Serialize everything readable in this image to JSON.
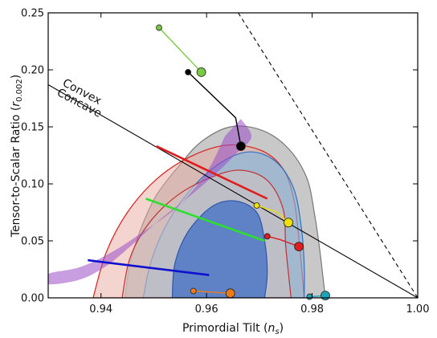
{
  "chart_data": {
    "type": "scatter",
    "xlabel_main": "Primordial Tilt (",
    "xlabel_var": "n",
    "xlabel_sub": "s",
    "xlabel_end": ")",
    "ylabel_main": "Tensor-to-Scalar Ratio (",
    "ylabel_var": "r",
    "ylabel_sub": "0.002",
    "ylabel_end": ")",
    "xlim": [
      0.93,
      1.0
    ],
    "ylim": [
      0.0,
      0.25
    ],
    "xticks": [
      0.94,
      0.96,
      0.98,
      1.0
    ],
    "xtick_labels": [
      "0.94",
      "0.96",
      "0.98",
      "1.00"
    ],
    "yticks": [
      0.0,
      0.05,
      0.1,
      0.15,
      0.2,
      0.25
    ],
    "ytick_labels": [
      "0.00",
      "0.05",
      "0.10",
      "0.15",
      "0.20",
      "0.25"
    ],
    "grid": false,
    "annotations": {
      "convex": "Convex",
      "concave": "Concave"
    },
    "boundary_line": {
      "x": [
        0.93,
        1.0
      ],
      "y": [
        0.187,
        0.0
      ]
    },
    "dashed_line": {
      "x": [
        0.966,
        1.0
      ],
      "y": [
        0.25,
        0.0
      ]
    },
    "contours": [
      {
        "color": "#b0b0b0",
        "opacity": 0.7,
        "stroke": "#777777",
        "points": [
          [
            0.9445,
            0.0
          ],
          [
            0.9455,
            0.03
          ],
          [
            0.9475,
            0.06
          ],
          [
            0.9505,
            0.09
          ],
          [
            0.955,
            0.117
          ],
          [
            0.959,
            0.137
          ],
          [
            0.9645,
            0.15
          ],
          [
            0.9705,
            0.147
          ],
          [
            0.9755,
            0.131
          ],
          [
            0.979,
            0.105
          ],
          [
            0.9805,
            0.072
          ],
          [
            0.9815,
            0.04
          ],
          [
            0.9825,
            0.0
          ]
        ]
      },
      {
        "color": "#e8a99e",
        "opacity": 0.5,
        "stroke": "#d62020",
        "points": [
          [
            0.9385,
            0.0
          ],
          [
            0.941,
            0.04
          ],
          [
            0.945,
            0.075
          ],
          [
            0.9505,
            0.104
          ],
          [
            0.957,
            0.124
          ],
          [
            0.964,
            0.134
          ],
          [
            0.9705,
            0.129
          ],
          [
            0.9745,
            0.113
          ],
          [
            0.9765,
            0.087
          ],
          [
            0.9775,
            0.052
          ],
          [
            0.9785,
            0.0
          ]
        ]
      },
      {
        "color": "#7fb8e0",
        "opacity": 0.6,
        "stroke": "#2f6fc4",
        "points": [
          [
            0.948,
            0.0
          ],
          [
            0.9495,
            0.032
          ],
          [
            0.9525,
            0.065
          ],
          [
            0.957,
            0.095
          ],
          [
            0.9625,
            0.118
          ],
          [
            0.968,
            0.128
          ],
          [
            0.973,
            0.12
          ],
          [
            0.9765,
            0.096
          ],
          [
            0.978,
            0.06
          ],
          [
            0.9785,
            0.028
          ],
          [
            0.9785,
            0.0
          ]
        ]
      },
      {
        "color": "#d0c2c2",
        "opacity": 0.6,
        "stroke": "#c03030",
        "points": [
          [
            0.944,
            0.0
          ],
          [
            0.9455,
            0.035
          ],
          [
            0.949,
            0.065
          ],
          [
            0.9545,
            0.09
          ],
          [
            0.961,
            0.106
          ],
          [
            0.9665,
            0.112
          ],
          [
            0.9715,
            0.103
          ],
          [
            0.9745,
            0.078
          ],
          [
            0.975,
            0.045
          ],
          [
            0.976,
            0.0
          ]
        ]
      },
      {
        "color": "#4f77c6",
        "opacity": 0.85,
        "stroke": "#2f55a8",
        "points": [
          [
            0.9535,
            0.0
          ],
          [
            0.954,
            0.03
          ],
          [
            0.9565,
            0.058
          ],
          [
            0.961,
            0.08
          ],
          [
            0.9655,
            0.085
          ],
          [
            0.9695,
            0.075
          ],
          [
            0.971,
            0.05
          ],
          [
            0.9715,
            0.022
          ],
          [
            0.971,
            0.0
          ]
        ]
      }
    ],
    "purple_band": {
      "color": "#9b4fc9",
      "points": [
        [
          0.9665,
          0.157
        ],
        [
          0.9685,
          0.141
        ],
        [
          0.9655,
          0.126
        ],
        [
          0.962,
          0.11
        ],
        [
          0.957,
          0.09
        ],
        [
          0.951,
          0.068
        ],
        [
          0.9455,
          0.045
        ],
        [
          0.941,
          0.028
        ],
        [
          0.936,
          0.016
        ],
        [
          0.93,
          0.012
        ],
        [
          0.93,
          0.021
        ],
        [
          0.936,
          0.027
        ],
        [
          0.942,
          0.04
        ],
        [
          0.948,
          0.058
        ],
        [
          0.9545,
          0.08
        ],
        [
          0.96,
          0.11
        ],
        [
          0.9635,
          0.142
        ]
      ]
    },
    "series": [
      {
        "color": "#7ac943",
        "marker": true,
        "x": [
          0.951,
          0.959
        ],
        "y": [
          0.237,
          0.198
        ]
      },
      {
        "color": "#000000",
        "marker": true,
        "x": [
          0.9565,
          0.9655,
          0.9665
        ],
        "y": [
          0.198,
          0.158,
          0.133
        ]
      },
      {
        "color": "#e01c1c",
        "marker": false,
        "x": [
          0.9505,
          0.9715
        ],
        "y": [
          0.133,
          0.087
        ]
      },
      {
        "color": "#f0e000",
        "marker": true,
        "x": [
          0.9695,
          0.9735,
          0.9755
        ],
        "y": [
          0.081,
          0.075,
          0.066
        ]
      },
      {
        "color": "#e01c1c",
        "marker": true,
        "x": [
          0.9715,
          0.974,
          0.9775
        ],
        "y": [
          0.054,
          0.051,
          0.045
        ]
      },
      {
        "color": "#2de02d",
        "marker": false,
        "x": [
          0.9485,
          0.971
        ],
        "y": [
          0.087,
          0.05
        ]
      },
      {
        "color": "#1010d0",
        "marker": false,
        "x": [
          0.9375,
          0.9605
        ],
        "y": [
          0.033,
          0.02
        ]
      },
      {
        "color": "#f07b16",
        "marker": true,
        "x": [
          0.9575,
          0.9645
        ],
        "y": [
          0.006,
          0.004
        ]
      },
      {
        "color": "#1ba6b8",
        "marker": true,
        "x": [
          0.9795,
          0.9825
        ],
        "y": [
          0.001,
          0.002
        ]
      }
    ]
  }
}
